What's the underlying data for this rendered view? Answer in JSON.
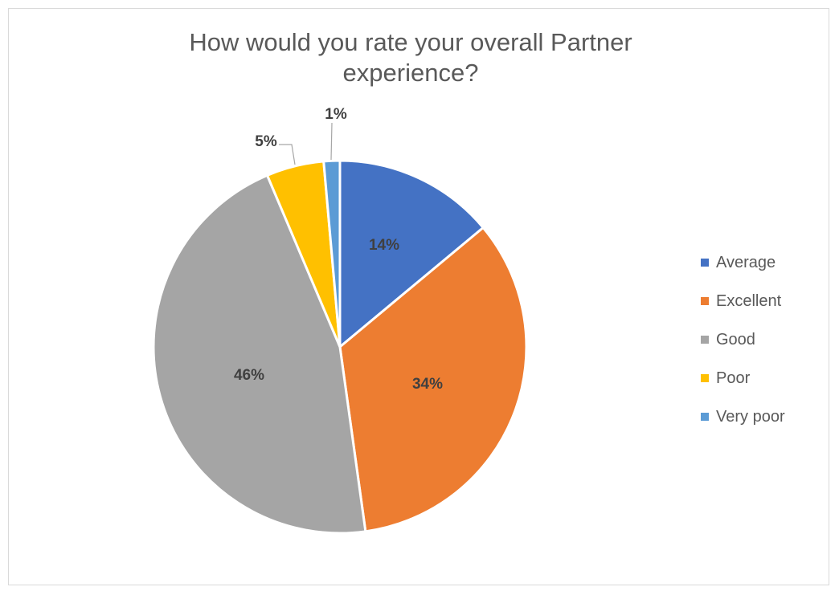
{
  "chart_data": {
    "type": "pie",
    "title_lines": [
      "How would you rate your overall Partner",
      "experience?"
    ],
    "start_angle_deg": 0,
    "direction": "clockwise",
    "legend_position": "right",
    "slices": [
      {
        "name": "Average",
        "value": 14,
        "label": "14%",
        "color": "#4472C4"
      },
      {
        "name": "Excellent",
        "value": 34,
        "label": "34%",
        "color": "#ED7D31"
      },
      {
        "name": "Good",
        "value": 46,
        "label": "46%",
        "color": "#A5A5A5"
      },
      {
        "name": "Poor",
        "value": 5,
        "label": "5%",
        "color": "#FFC000"
      },
      {
        "name": "Very poor",
        "value": 1.4,
        "label": "1%",
        "color": "#5B9BD5"
      }
    ]
  }
}
